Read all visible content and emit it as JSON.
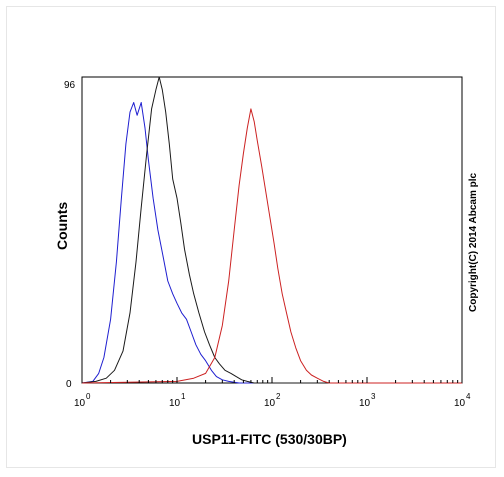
{
  "chart_data": {
    "type": "line",
    "xlabel": "USP11-FITC (530/30BP)",
    "ylabel": "Counts",
    "xscale": "log",
    "xlim": [
      1,
      10000
    ],
    "ylim": [
      0,
      96
    ],
    "x_tick_labels": [
      {
        "base": "10",
        "exp": "0"
      },
      {
        "base": "10",
        "exp": "1"
      },
      {
        "base": "10",
        "exp": "2"
      },
      {
        "base": "10",
        "exp": "3"
      },
      {
        "base": "10",
        "exp": "4"
      }
    ],
    "y_tick_labels": [
      "0",
      "96"
    ],
    "annotation": "Copyright(C) 2014 Abcam plc",
    "grid": false,
    "series": [
      {
        "color": "#1f1fd0",
        "x": [
          1,
          1.3,
          1.5,
          1.7,
          2.0,
          2.3,
          2.6,
          2.9,
          3.2,
          3.5,
          3.8,
          4.2,
          4.6,
          5.0,
          5.6,
          6.3,
          7.1,
          8.0,
          9.0,
          10.0,
          11.2,
          12.6,
          14.1,
          15.8,
          17.8,
          20.0,
          23.0,
          26.0,
          30.0,
          35.0,
          45.0,
          10000
        ],
        "y": [
          0,
          0.5,
          3,
          8,
          20,
          38,
          58,
          75,
          85,
          88,
          84,
          88,
          80,
          70,
          58,
          48,
          40,
          32,
          28,
          25,
          22,
          20,
          16,
          12,
          9,
          7,
          4,
          2,
          1,
          0.5,
          0,
          0
        ]
      },
      {
        "color": "#1a1a1a",
        "x": [
          1,
          1.4,
          1.8,
          2.2,
          2.7,
          3.2,
          3.7,
          4.2,
          4.8,
          5.4,
          6.0,
          6.5,
          7.0,
          7.6,
          8.3,
          9.0,
          10.0,
          11.0,
          12.0,
          13.5,
          15.0,
          17.0,
          19.5,
          22.0,
          25.0,
          28.0,
          32.0,
          37.0,
          42.0,
          48.0,
          55.0,
          65.0,
          10000
        ],
        "y": [
          0,
          0.5,
          1.5,
          4,
          10,
          22,
          38,
          55,
          72,
          86,
          92,
          96,
          92,
          85,
          75,
          64,
          58,
          50,
          42,
          34,
          28,
          22,
          16,
          12,
          8,
          6,
          4,
          3,
          2,
          1,
          0.5,
          0,
          0
        ]
      },
      {
        "color": "#cc2222",
        "x": [
          1,
          10,
          15,
          20,
          25,
          30,
          35,
          40,
          45,
          50,
          55,
          60,
          65,
          70,
          78,
          86,
          95,
          105,
          115,
          128,
          142,
          158,
          178,
          200,
          230,
          260,
          300,
          350,
          400,
          10000
        ],
        "y": [
          0,
          0.5,
          1.5,
          3,
          8,
          18,
          32,
          48,
          62,
          72,
          80,
          86,
          82,
          76,
          68,
          60,
          52,
          44,
          36,
          28,
          22,
          16,
          11,
          7,
          4,
          2.5,
          1.5,
          0.5,
          0,
          0
        ]
      }
    ]
  }
}
